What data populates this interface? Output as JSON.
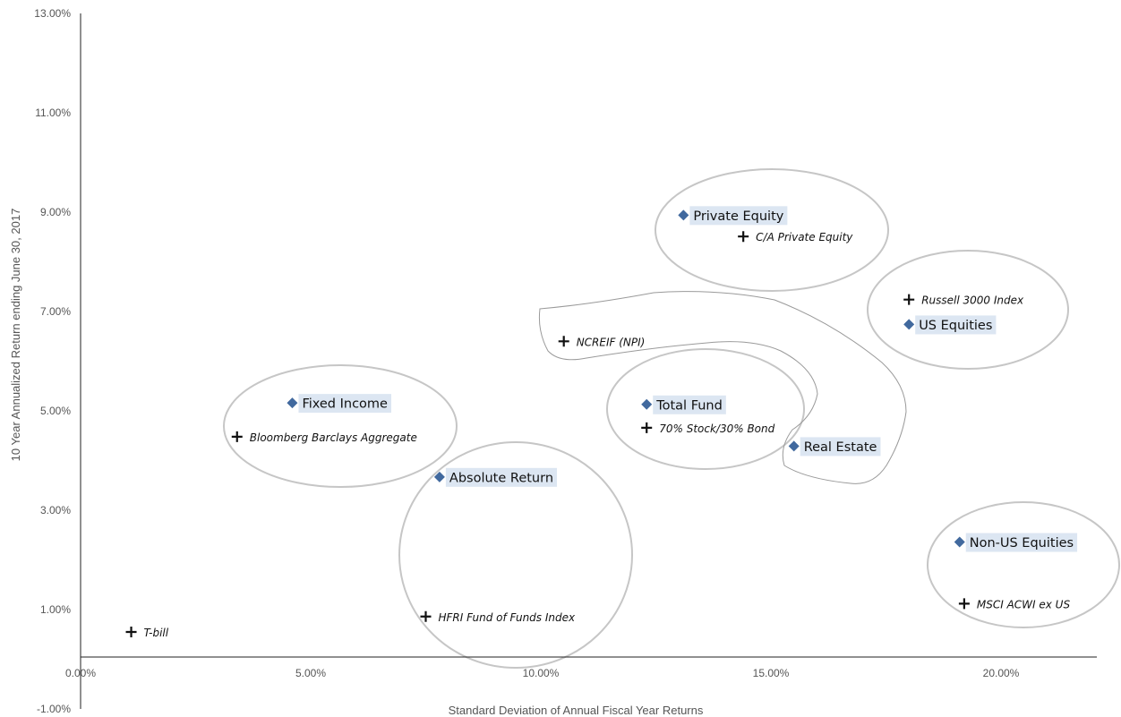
{
  "chart_data": {
    "type": "scatter",
    "title": "",
    "xlabel": "Standard Deviation of Annual Fiscal Year Returns",
    "ylabel": "10 Year Annualized Return ending June 30, 2017",
    "xlim": [
      0,
      22
    ],
    "ylim": [
      -1,
      13
    ],
    "x_ticks": [
      "0.00%",
      "5.00%",
      "10.00%",
      "15.00%",
      "20.00%"
    ],
    "y_ticks": [
      "-1.00%",
      "1.00%",
      "3.00%",
      "5.00%",
      "7.00%",
      "9.00%",
      "11.00%",
      "13.00%"
    ],
    "grid": false,
    "legend": "none",
    "marker_colors": {
      "asset_class": "#41699e",
      "benchmark": "#111111"
    },
    "series": [
      {
        "marker": "diamond",
        "points": [
          {
            "label": "Private Equity",
            "x": 13.1,
            "y": 8.94
          },
          {
            "label": "US Equities",
            "x": 18.0,
            "y": 6.74
          },
          {
            "label": "Fixed Income",
            "x": 4.6,
            "y": 5.16
          },
          {
            "label": "Total Fund",
            "x": 12.3,
            "y": 5.13
          },
          {
            "label": "Real Estate",
            "x": 15.5,
            "y": 4.29
          },
          {
            "label": "Absolute Return",
            "x": 7.8,
            "y": 3.67
          },
          {
            "label": "Non-US Equities",
            "x": 19.1,
            "y": 2.36
          }
        ]
      },
      {
        "marker": "cross",
        "points": [
          {
            "label": "C/A Private Equity",
            "x": 14.4,
            "y": 8.51
          },
          {
            "label": "Russell 3000 Index",
            "x": 18.0,
            "y": 7.24
          },
          {
            "label": "NCREIF (NPI)",
            "x": 10.5,
            "y": 6.4
          },
          {
            "label": "70% Stock/30% Bond",
            "x": 12.3,
            "y": 4.66
          },
          {
            "label": "Bloomberg Barclays Aggregate",
            "x": 3.4,
            "y": 4.48
          },
          {
            "label": "HFRI Fund of Funds Index",
            "x": 7.5,
            "y": 0.86
          },
          {
            "label": "MSCI ACWI ex US",
            "x": 19.2,
            "y": 1.12
          },
          {
            "label": "T-bill",
            "x": 1.1,
            "y": 0.55
          }
        ]
      }
    ]
  }
}
